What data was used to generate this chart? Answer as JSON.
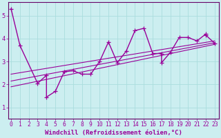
{
  "xlabel": "Windchill (Refroidissement éolien,°C)",
  "background_color": "#cceef0",
  "grid_color": "#aadddd",
  "line_color": "#990099",
  "axis_color": "#660066",
  "x_data": [
    0,
    1,
    3,
    4,
    4,
    5,
    6,
    7,
    8,
    9,
    10,
    11,
    12,
    13,
    14,
    15,
    16,
    17,
    17,
    18,
    19,
    20,
    21,
    22,
    22,
    23
  ],
  "y_data": [
    5.3,
    3.7,
    2.05,
    2.4,
    1.45,
    1.7,
    2.55,
    2.6,
    2.45,
    2.45,
    3.0,
    3.85,
    2.95,
    3.45,
    4.35,
    4.45,
    3.35,
    3.35,
    2.95,
    3.4,
    4.05,
    4.05,
    3.9,
    4.2,
    4.15,
    3.8
  ],
  "reg_lines": [
    {
      "x0": 0,
      "y0": 1.9,
      "x1": 23,
      "y1": 3.75
    },
    {
      "x0": 0,
      "y0": 2.15,
      "x1": 23,
      "y1": 3.82
    },
    {
      "x0": 0,
      "y0": 2.45,
      "x1": 23,
      "y1": 3.9
    }
  ],
  "xlim": [
    -0.3,
    23.5
  ],
  "ylim": [
    0.5,
    5.6
  ],
  "xticks": [
    0,
    1,
    2,
    3,
    4,
    5,
    6,
    7,
    8,
    9,
    10,
    11,
    12,
    13,
    14,
    15,
    16,
    17,
    18,
    19,
    20,
    21,
    22,
    23
  ],
  "yticks": [
    1,
    2,
    3,
    4,
    5
  ],
  "font_family": "monospace",
  "xlabel_fontsize": 6.5,
  "tick_fontsize": 5.8,
  "line_width": 1.0,
  "marker_size": 4.0
}
